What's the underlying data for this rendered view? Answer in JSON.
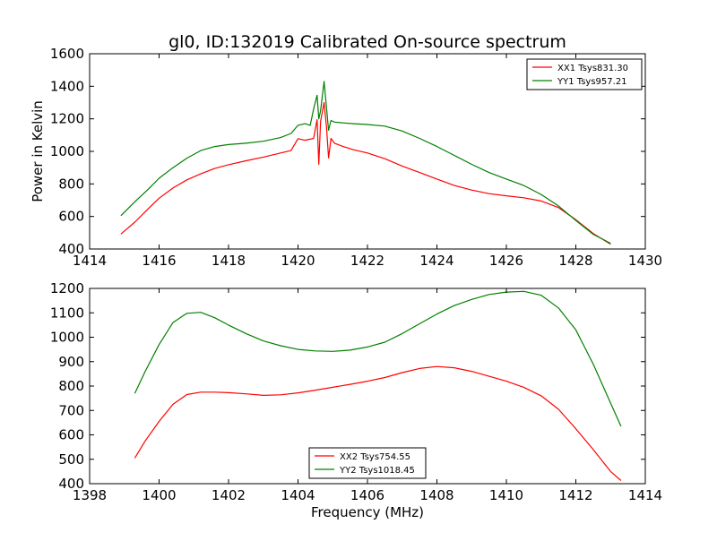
{
  "chart_data": [
    {
      "type": "line",
      "title": "gl0, ID:132019 Calibrated On-source spectrum",
      "xlabel": "",
      "ylabel": "Power in Kelvin",
      "xlim": [
        1414,
        1430
      ],
      "ylim": [
        400,
        1600
      ],
      "xticks": [
        1414,
        1416,
        1418,
        1420,
        1422,
        1424,
        1426,
        1428,
        1430
      ],
      "yticks": [
        400,
        600,
        800,
        1000,
        1200,
        1400,
        1600
      ],
      "grid": false,
      "legend_position": "top-right",
      "series": [
        {
          "name": "XX1 Tsys831.30",
          "color": "#ff0000",
          "points": [
            [
              1414.9,
              492
            ],
            [
              1415.3,
              565
            ],
            [
              1415.7,
              650
            ],
            [
              1416.0,
              712
            ],
            [
              1416.4,
              775
            ],
            [
              1416.8,
              825
            ],
            [
              1417.2,
              862
            ],
            [
              1417.6,
              895
            ],
            [
              1418.0,
              918
            ],
            [
              1418.5,
              942
            ],
            [
              1419.0,
              965
            ],
            [
              1419.5,
              990
            ],
            [
              1419.8,
              1005
            ],
            [
              1420.0,
              1078
            ],
            [
              1420.2,
              1068
            ],
            [
              1420.35,
              1075
            ],
            [
              1420.45,
              1080
            ],
            [
              1420.55,
              1195
            ],
            [
              1420.6,
              920
            ],
            [
              1420.65,
              1185
            ],
            [
              1420.75,
              1300
            ],
            [
              1420.82,
              1150
            ],
            [
              1420.88,
              960
            ],
            [
              1420.95,
              1080
            ],
            [
              1421.05,
              1050
            ],
            [
              1421.3,
              1030
            ],
            [
              1421.6,
              1010
            ],
            [
              1422.0,
              990
            ],
            [
              1422.5,
              955
            ],
            [
              1423.0,
              910
            ],
            [
              1423.5,
              870
            ],
            [
              1424.0,
              830
            ],
            [
              1424.5,
              790
            ],
            [
              1425.0,
              762
            ],
            [
              1425.5,
              740
            ],
            [
              1426.0,
              727
            ],
            [
              1426.5,
              715
            ],
            [
              1427.0,
              695
            ],
            [
              1427.5,
              655
            ],
            [
              1428.0,
              580
            ],
            [
              1428.5,
              495
            ],
            [
              1429.0,
              430
            ]
          ]
        },
        {
          "name": "YY1 Tsys957.21",
          "color": "#008000",
          "points": [
            [
              1414.9,
              605
            ],
            [
              1415.3,
              690
            ],
            [
              1415.7,
              770
            ],
            [
              1416.0,
              835
            ],
            [
              1416.4,
              900
            ],
            [
              1416.8,
              958
            ],
            [
              1417.2,
              1005
            ],
            [
              1417.6,
              1030
            ],
            [
              1418.0,
              1042
            ],
            [
              1418.5,
              1050
            ],
            [
              1419.0,
              1062
            ],
            [
              1419.5,
              1085
            ],
            [
              1419.8,
              1110
            ],
            [
              1420.0,
              1160
            ],
            [
              1420.2,
              1170
            ],
            [
              1420.35,
              1160
            ],
            [
              1420.45,
              1260
            ],
            [
              1420.55,
              1345
            ],
            [
              1420.6,
              1200
            ],
            [
              1420.65,
              1250
            ],
            [
              1420.75,
              1430
            ],
            [
              1420.82,
              1270
            ],
            [
              1420.88,
              1130
            ],
            [
              1420.95,
              1190
            ],
            [
              1421.05,
              1180
            ],
            [
              1421.3,
              1175
            ],
            [
              1421.6,
              1170
            ],
            [
              1422.0,
              1165
            ],
            [
              1422.5,
              1155
            ],
            [
              1423.0,
              1125
            ],
            [
              1423.5,
              1080
            ],
            [
              1424.0,
              1030
            ],
            [
              1424.5,
              975
            ],
            [
              1425.0,
              920
            ],
            [
              1425.5,
              870
            ],
            [
              1426.0,
              830
            ],
            [
              1426.5,
              790
            ],
            [
              1427.0,
              735
            ],
            [
              1427.5,
              665
            ],
            [
              1428.0,
              575
            ],
            [
              1428.5,
              490
            ],
            [
              1429.0,
              435
            ]
          ]
        }
      ]
    },
    {
      "type": "line",
      "title": "",
      "xlabel": "Frequency (MHz)",
      "ylabel": "",
      "xlim": [
        1398,
        1414
      ],
      "ylim": [
        400,
        1200
      ],
      "xticks": [
        1398,
        1400,
        1402,
        1404,
        1406,
        1408,
        1410,
        1412,
        1414
      ],
      "yticks": [
        400,
        500,
        600,
        700,
        800,
        900,
        1000,
        1100,
        1200
      ],
      "grid": false,
      "legend_position": "bottom-center",
      "series": [
        {
          "name": "XX2 Tsys754.55",
          "color": "#ff0000",
          "points": [
            [
              1399.3,
              505
            ],
            [
              1399.6,
              575
            ],
            [
              1400.0,
              655
            ],
            [
              1400.4,
              725
            ],
            [
              1400.8,
              765
            ],
            [
              1401.2,
              775
            ],
            [
              1401.6,
              775
            ],
            [
              1402.0,
              773
            ],
            [
              1402.5,
              768
            ],
            [
              1403.0,
              762
            ],
            [
              1403.5,
              764
            ],
            [
              1404.0,
              772
            ],
            [
              1404.5,
              783
            ],
            [
              1405.0,
              795
            ],
            [
              1405.5,
              807
            ],
            [
              1406.0,
              820
            ],
            [
              1406.5,
              835
            ],
            [
              1407.0,
              855
            ],
            [
              1407.5,
              872
            ],
            [
              1408.0,
              880
            ],
            [
              1408.5,
              875
            ],
            [
              1409.0,
              860
            ],
            [
              1409.5,
              840
            ],
            [
              1410.0,
              820
            ],
            [
              1410.5,
              795
            ],
            [
              1411.0,
              760
            ],
            [
              1411.5,
              705
            ],
            [
              1412.0,
              625
            ],
            [
              1412.5,
              540
            ],
            [
              1413.0,
              450
            ],
            [
              1413.3,
              413
            ]
          ]
        },
        {
          "name": "YY2 Tsys1018.45",
          "color": "#008000",
          "points": [
            [
              1399.3,
              770
            ],
            [
              1399.6,
              860
            ],
            [
              1400.0,
              970
            ],
            [
              1400.4,
              1060
            ],
            [
              1400.8,
              1098
            ],
            [
              1401.2,
              1102
            ],
            [
              1401.6,
              1080
            ],
            [
              1402.0,
              1050
            ],
            [
              1402.5,
              1015
            ],
            [
              1403.0,
              985
            ],
            [
              1403.5,
              965
            ],
            [
              1404.0,
              950
            ],
            [
              1404.5,
              944
            ],
            [
              1405.0,
              942
            ],
            [
              1405.5,
              947
            ],
            [
              1406.0,
              960
            ],
            [
              1406.5,
              980
            ],
            [
              1407.0,
              1015
            ],
            [
              1407.5,
              1055
            ],
            [
              1408.0,
              1095
            ],
            [
              1408.5,
              1130
            ],
            [
              1409.0,
              1155
            ],
            [
              1409.5,
              1175
            ],
            [
              1410.0,
              1185
            ],
            [
              1410.5,
              1188
            ],
            [
              1411.0,
              1172
            ],
            [
              1411.5,
              1120
            ],
            [
              1412.0,
              1030
            ],
            [
              1412.5,
              890
            ],
            [
              1413.0,
              730
            ],
            [
              1413.3,
              635
            ]
          ]
        }
      ]
    }
  ]
}
